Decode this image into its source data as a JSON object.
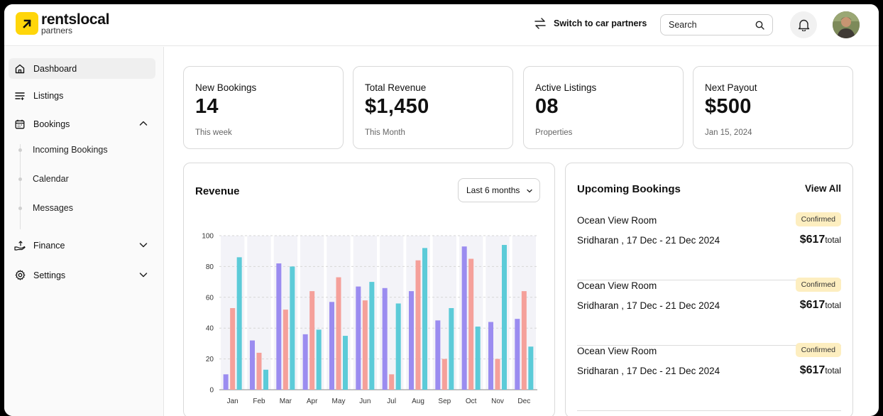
{
  "brand": {
    "name": "rentslocal",
    "sub": "partners",
    "color": "#ffd60a"
  },
  "header": {
    "switch_label": "Switch to car partners",
    "search_placeholder": "Search"
  },
  "sidebar": {
    "items": [
      {
        "label": "Dashboard",
        "icon": "home-icon",
        "active": true
      },
      {
        "label": "Listings",
        "icon": "list-icon"
      },
      {
        "label": "Bookings",
        "icon": "calendar-icon",
        "expanded": true
      },
      {
        "label": "Finance",
        "icon": "hand-money-icon"
      },
      {
        "label": "Settings",
        "icon": "gear-icon"
      }
    ],
    "bookings_sub": [
      "Incoming Bookings",
      "Calendar",
      "Messages"
    ]
  },
  "stats": [
    {
      "label": "New Bookings",
      "value": "14",
      "sub": "This week"
    },
    {
      "label": "Total Revenue",
      "value": "$1,450",
      "sub": "This Month"
    },
    {
      "label": "Active Listings",
      "value": "08",
      "sub": "Properties"
    },
    {
      "label": "Next Payout",
      "value": "$500",
      "sub": "Jan 15, 2024"
    }
  ],
  "revenue": {
    "title": "Revenue",
    "range": "Last 6 months"
  },
  "chart_data": {
    "type": "bar",
    "categories": [
      "Jan",
      "Feb",
      "Mar",
      "Apr",
      "May",
      "Jun",
      "Jul",
      "Aug",
      "Sep",
      "Oct",
      "Nov",
      "Dec"
    ],
    "series": [
      {
        "color": "#9b8cf0",
        "values": [
          10,
          32,
          82,
          36,
          57,
          67,
          66,
          64,
          45,
          93,
          44,
          46
        ]
      },
      {
        "color": "#f5a09a",
        "values": [
          53,
          24,
          52,
          64,
          73,
          58,
          10,
          84,
          20,
          85,
          20,
          64
        ]
      },
      {
        "color": "#5ccbd8",
        "values": [
          86,
          13,
          80,
          39,
          35,
          70,
          56,
          92,
          53,
          41,
          94,
          28
        ]
      }
    ],
    "yticks": [
      0,
      20,
      40,
      60,
      80,
      100
    ],
    "ylim": [
      0,
      100
    ],
    "grid": true
  },
  "upcoming": {
    "title": "Upcoming Bookings",
    "view_all": "View All",
    "items": [
      {
        "room": "Ocean View Room",
        "guest": "Sridharan , 17 Dec - 21 Dec 2024",
        "status": "Confirmed",
        "price": "$617",
        "price_suffix": "total"
      },
      {
        "room": "Ocean View Room",
        "guest": "Sridharan , 17 Dec - 21 Dec 2024",
        "status": "Confirmed",
        "price": "$617",
        "price_suffix": "total"
      },
      {
        "room": "Ocean View Room",
        "guest": "Sridharan , 17 Dec - 21 Dec 2024",
        "status": "Confirmed",
        "price": "$617",
        "price_suffix": "total"
      }
    ]
  }
}
